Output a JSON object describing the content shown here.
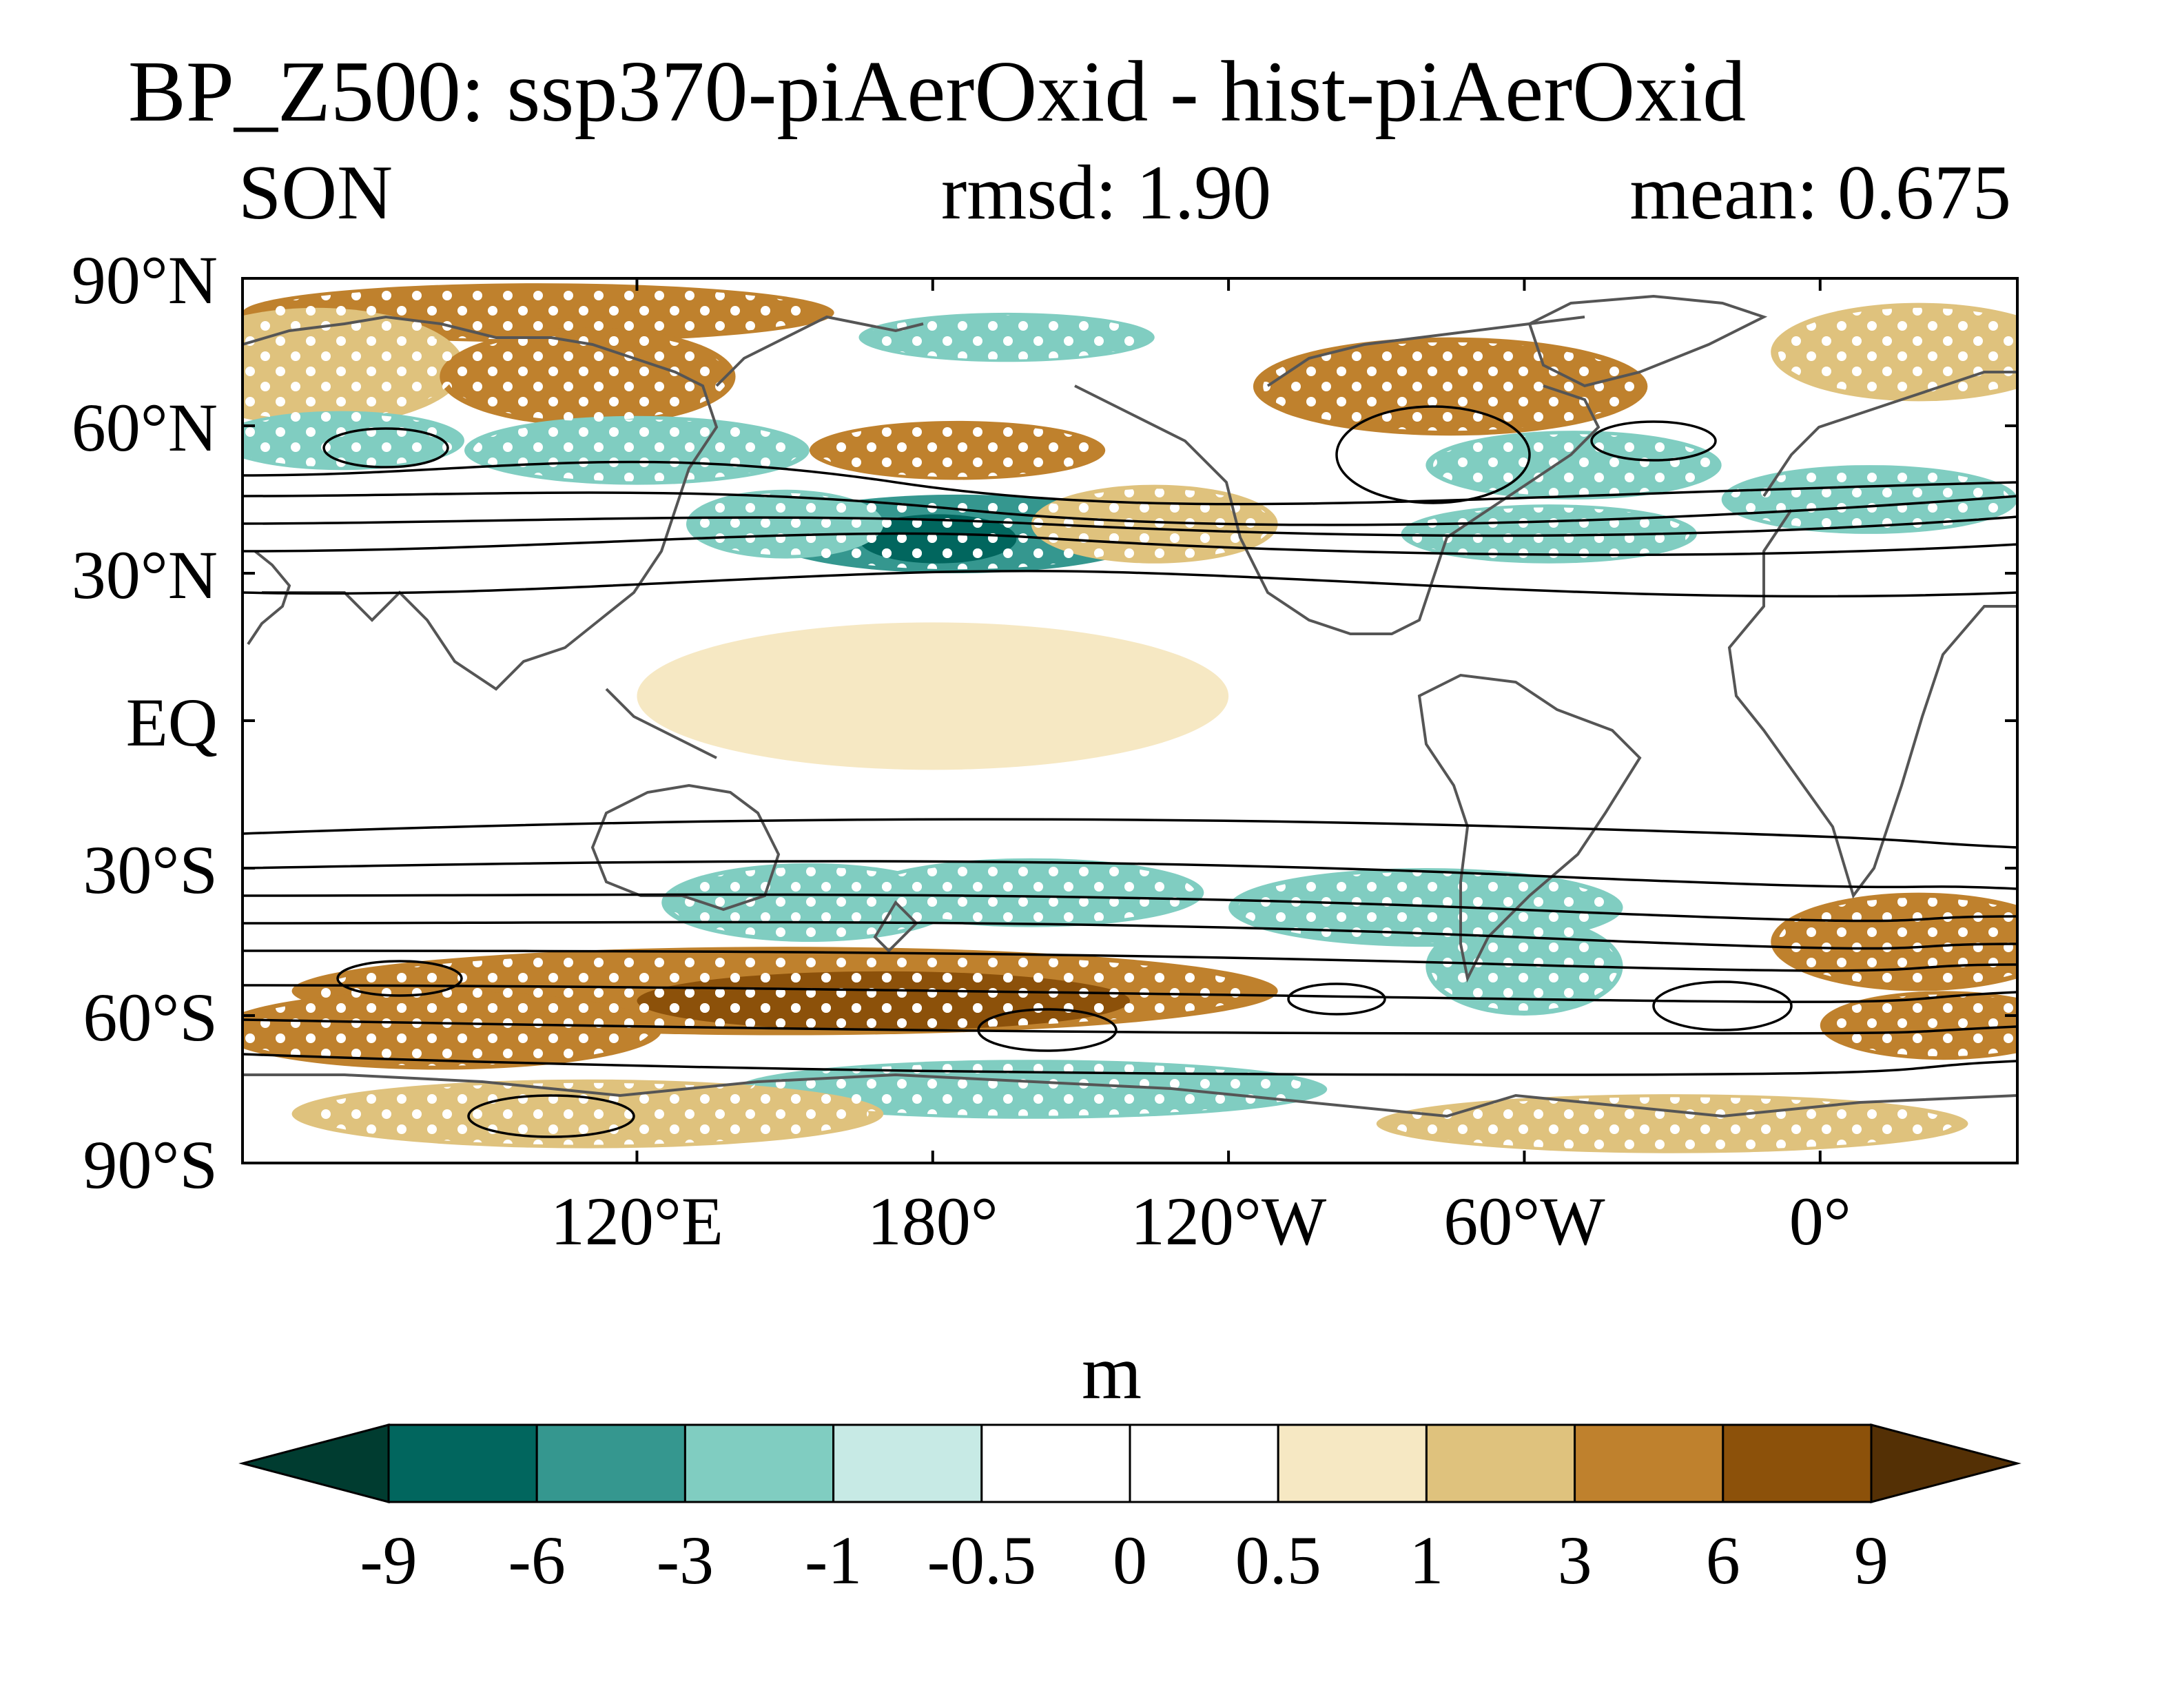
{
  "chart_data": {
    "type": "heatmap",
    "title": "BP_Z500: ssp370-piAerOxid - hist-piAerOxid",
    "subtitle_left": "SON",
    "subtitle_center": "rmsd: 1.90",
    "subtitle_right": "mean: 0.675",
    "colorbar_label": "m",
    "x_ticks": [
      "120°E",
      "180°",
      "120°W",
      "60°W",
      "0°"
    ],
    "x_tick_lons": [
      120,
      180,
      240,
      300,
      360
    ],
    "x_range": [
      40,
      400
    ],
    "y_ticks": [
      "90°N",
      "60°N",
      "30°N",
      "EQ",
      "30°S",
      "60°S",
      "90°S"
    ],
    "y_tick_lats": [
      90,
      60,
      30,
      0,
      -30,
      -60,
      -90
    ],
    "y_range": [
      -90,
      90
    ],
    "levels": [
      -9,
      -6,
      -3,
      -1,
      -0.5,
      0,
      0.5,
      1,
      3,
      6,
      9
    ],
    "level_labels": [
      "-9",
      "-6",
      "-3",
      "-1",
      "-0.5",
      "0",
      "0.5",
      "1",
      "3",
      "6",
      "9"
    ],
    "colors": [
      "#003c30",
      "#01665e",
      "#35978f",
      "#80cdc1",
      "#c7eae5",
      "#ffffff",
      "#ffffff",
      "#f6e8c3",
      "#dfc27d",
      "#bf812d",
      "#8c510a",
      "#543005"
    ],
    "anomaly_regions": [
      {
        "lon": 100,
        "lat": 83,
        "rx": 60,
        "ry": 6,
        "value": 4
      },
      {
        "lon": 55,
        "lat": 72,
        "rx": 30,
        "ry": 12,
        "value": 2
      },
      {
        "lon": 110,
        "lat": 70,
        "rx": 30,
        "ry": 10,
        "value": 4
      },
      {
        "lon": 195,
        "lat": 78,
        "rx": 30,
        "ry": 5,
        "value": -2
      },
      {
        "lon": 285,
        "lat": 68,
        "rx": 40,
        "ry": 10,
        "value": 4
      },
      {
        "lon": 380,
        "lat": 75,
        "rx": 30,
        "ry": 10,
        "value": 2
      },
      {
        "lon": 60,
        "lat": 57,
        "rx": 25,
        "ry": 6,
        "value": -2
      },
      {
        "lon": 120,
        "lat": 55,
        "rx": 35,
        "ry": 7,
        "value": -2
      },
      {
        "lon": 185,
        "lat": 55,
        "rx": 30,
        "ry": 6,
        "value": 3
      },
      {
        "lon": 185,
        "lat": 38,
        "rx": 40,
        "ry": 8,
        "value": -4
      },
      {
        "lon": 181,
        "lat": 37,
        "rx": 16,
        "ry": 5,
        "value": -7
      },
      {
        "lon": 150,
        "lat": 40,
        "rx": 20,
        "ry": 7,
        "value": -2
      },
      {
        "lon": 225,
        "lat": 40,
        "rx": 25,
        "ry": 8,
        "value": 1.5
      },
      {
        "lon": 310,
        "lat": 52,
        "rx": 30,
        "ry": 7,
        "value": -2
      },
      {
        "lon": 305,
        "lat": 38,
        "rx": 30,
        "ry": 6,
        "value": -2
      },
      {
        "lon": 370,
        "lat": 45,
        "rx": 30,
        "ry": 7,
        "value": -2
      },
      {
        "lon": 155,
        "lat": -37,
        "rx": 30,
        "ry": 8,
        "value": -2
      },
      {
        "lon": 200,
        "lat": -35,
        "rx": 35,
        "ry": 7,
        "value": -3
      },
      {
        "lon": 280,
        "lat": -38,
        "rx": 40,
        "ry": 8,
        "value": -2
      },
      {
        "lon": 300,
        "lat": -50,
        "rx": 20,
        "ry": 10,
        "value": -2
      },
      {
        "lon": 150,
        "lat": -55,
        "rx": 100,
        "ry": 9,
        "value": 4
      },
      {
        "lon": 170,
        "lat": -57,
        "rx": 50,
        "ry": 6,
        "value": 7
      },
      {
        "lon": 80,
        "lat": -63,
        "rx": 45,
        "ry": 8,
        "value": 5
      },
      {
        "lon": 380,
        "lat": -45,
        "rx": 30,
        "ry": 10,
        "value": 4
      },
      {
        "lon": 385,
        "lat": -62,
        "rx": 25,
        "ry": 7,
        "value": 5
      },
      {
        "lon": 200,
        "lat": -75,
        "rx": 60,
        "ry": 6,
        "value": -1.5
      },
      {
        "lon": 110,
        "lat": -80,
        "rx": 60,
        "ry": 7,
        "value": 2
      },
      {
        "lon": 330,
        "lat": -82,
        "rx": 60,
        "ry": 6,
        "value": 1.5
      },
      {
        "lon": 180,
        "lat": 5,
        "rx": 60,
        "ry": 15,
        "value": 0.7
      }
    ]
  }
}
